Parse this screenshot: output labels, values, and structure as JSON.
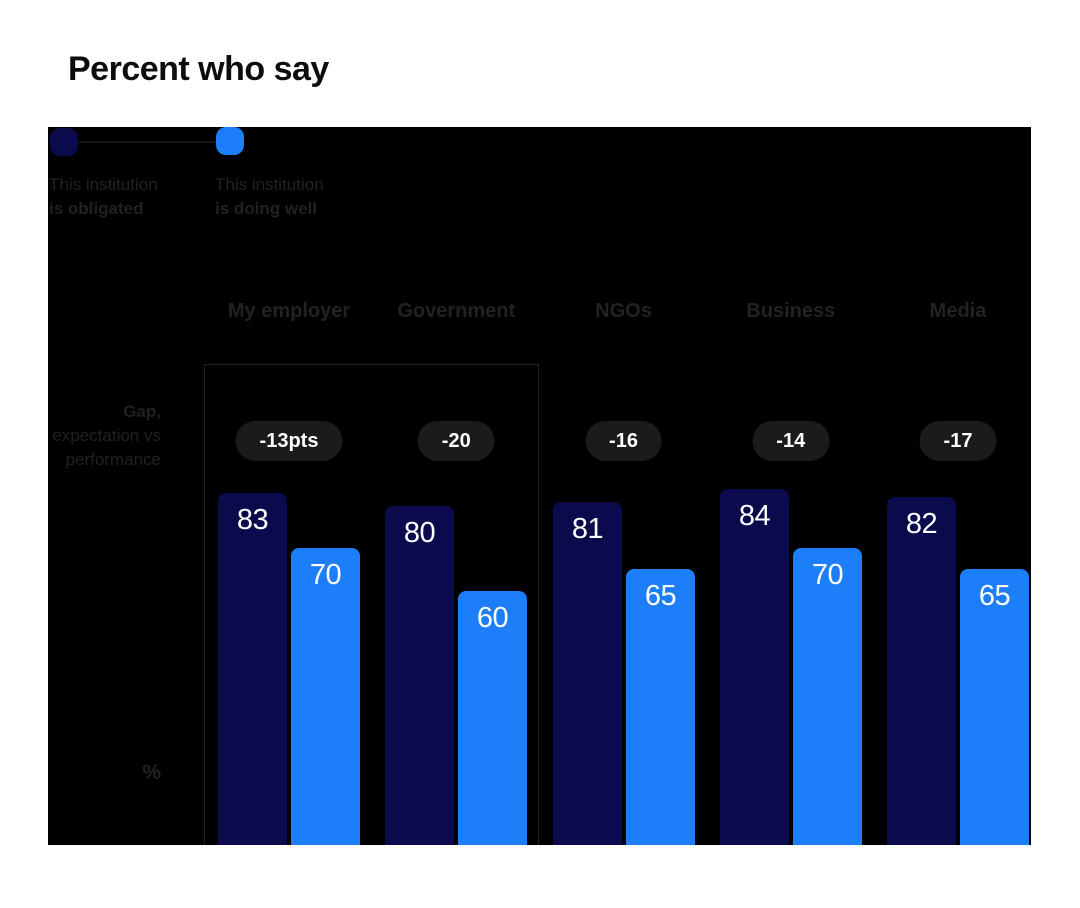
{
  "title": "Percent who say",
  "legend": {
    "items": [
      {
        "line1": "This institution",
        "line2": "is obligated",
        "color": "#0a0a4d"
      },
      {
        "line1": "This institution",
        "line2": "is doing well",
        "color": "#1d7ef9"
      }
    ]
  },
  "axis": {
    "gap_label_line1": "Gap,",
    "gap_label_line2": "expectation vs",
    "gap_label_line3": "performance",
    "unit": "%"
  },
  "chart_data": {
    "type": "bar",
    "title": "Percent who say",
    "categories": [
      "My employer",
      "Government",
      "NGOs",
      "Business",
      "Media"
    ],
    "series": [
      {
        "name": "This institution is obligated",
        "color": "#0a0a4d",
        "values": [
          83,
          80,
          81,
          84,
          82
        ]
      },
      {
        "name": "This institution is doing well",
        "color": "#1d7ef9",
        "values": [
          70,
          60,
          65,
          70,
          65
        ]
      }
    ],
    "gap_labels": [
      "-13pts",
      "-20",
      "-16",
      "-14",
      "-17"
    ],
    "gap_row_label": "Gap, expectation vs performance",
    "unit": "%",
    "ylim": [
      0,
      100
    ],
    "grid": false,
    "value_labels_shown": true,
    "legend_position": "top-left",
    "highlighted_categories": [
      "My employer",
      "Government"
    ]
  },
  "colors": {
    "page_background": "#ffffff",
    "chart_background": "#000000",
    "obligated_bar": "#0a0a4d",
    "doing_well_bar": "#1d7ef9",
    "gap_pill_background": "#1b1b1d",
    "muted_text": "#212121",
    "value_text": "#ffffff",
    "title_text": "#0d0d0d"
  }
}
